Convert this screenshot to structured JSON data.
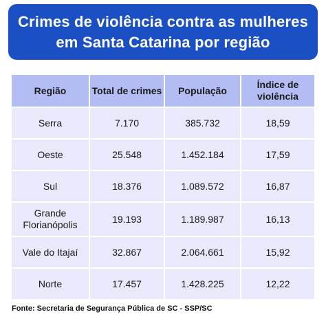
{
  "title": {
    "line1": "Crimes de violência contra as mulheres",
    "line2": "em Santa Catarina por região"
  },
  "columns": [
    "Região",
    "Total de crimes",
    "População",
    "Índice de violência"
  ],
  "rows": [
    {
      "regiao": "Serra",
      "total": "7.170",
      "populacao": "385.732",
      "indice": "18,59"
    },
    {
      "regiao": "Oeste",
      "total": "25.548",
      "populacao": "1.452.184",
      "indice": "17,59"
    },
    {
      "regiao": "Sul",
      "total": "18.376",
      "populacao": "1.089.572",
      "indice": "16,87"
    },
    {
      "regiao": "Grande Florianópolis",
      "total": "19.193",
      "populacao": "1.189.987",
      "indice": "16,13"
    },
    {
      "regiao": "Vale do Itajaí",
      "total": "32.867",
      "populacao": "2.064.661",
      "indice": "15,92"
    },
    {
      "regiao": "Norte",
      "total": "17.457",
      "populacao": "1.428.225",
      "indice": "12,22"
    }
  ],
  "source": "Fonte: Secretaria de Segurança Pública de SC - SSP/SC",
  "colors": {
    "title_bg": "#1b4fc4",
    "header_bg": "#b4bdf3",
    "cell_bg": "#e8e9fb"
  }
}
